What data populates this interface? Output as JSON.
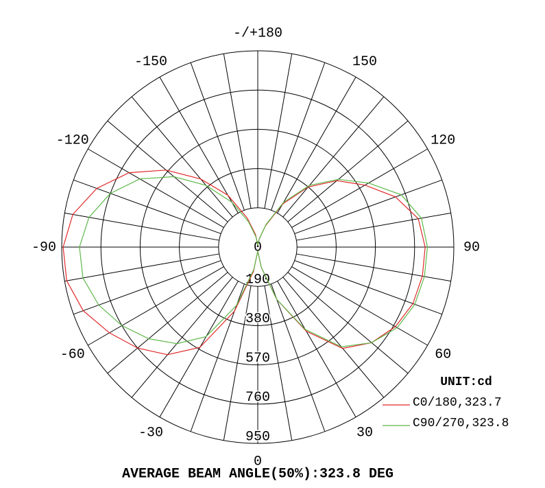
{
  "chart_data": {
    "type": "polar",
    "note": "AVERAGE BEAM ANGLE(50%):323.8 DEG",
    "unit_label": "UNIT:cd",
    "rlim": [
      0,
      950
    ],
    "rticks": [
      0,
      190,
      380,
      570,
      760,
      950
    ],
    "thetaticks": [
      {
        "value": 180,
        "label": "-/+180"
      },
      150,
      120,
      90,
      60,
      30,
      0,
      -30,
      -60,
      -90,
      -120,
      -150
    ],
    "thetagrid": [
      -170,
      -160,
      -150,
      -140,
      -130,
      -120,
      -110,
      -100,
      -90,
      -80,
      -70,
      -60,
      -50,
      -40,
      -30,
      -20,
      -10,
      0,
      10,
      20,
      30,
      40,
      50,
      60,
      70,
      80,
      90,
      100,
      110,
      120,
      130,
      140,
      150,
      160,
      170,
      180
    ],
    "theta": [
      -180,
      -170,
      -160,
      -150,
      -140,
      -130,
      -120,
      -110,
      -100,
      -90,
      -80,
      -70,
      -60,
      -50,
      -40,
      -30,
      -20,
      -10,
      0,
      10,
      20,
      30,
      40,
      50,
      60,
      70,
      80,
      90,
      100,
      110,
      120,
      130,
      140,
      150,
      160,
      170,
      180
    ],
    "series": [
      {
        "name": "C0/180,323.7",
        "color": "#e0282a",
        "values": [
          10,
          60,
          150,
          290,
          430,
          580,
          720,
          830,
          910,
          943,
          940,
          900,
          830,
          760,
          680,
          560,
          330,
          120,
          20,
          100,
          270,
          470,
          640,
          720,
          770,
          800,
          810,
          811,
          790,
          710,
          600,
          500,
          380,
          240,
          110,
          40,
          10
        ]
      },
      {
        "name": "C90/270,323.8",
        "color": "#5cb848",
        "values": [
          10,
          50,
          130,
          250,
          390,
          530,
          660,
          760,
          830,
          864,
          860,
          820,
          760,
          690,
          610,
          500,
          300,
          110,
          20,
          100,
          270,
          460,
          630,
          720,
          780,
          810,
          820,
          822,
          805,
          740,
          620,
          510,
          390,
          250,
          115,
          40,
          10
        ]
      }
    ]
  }
}
